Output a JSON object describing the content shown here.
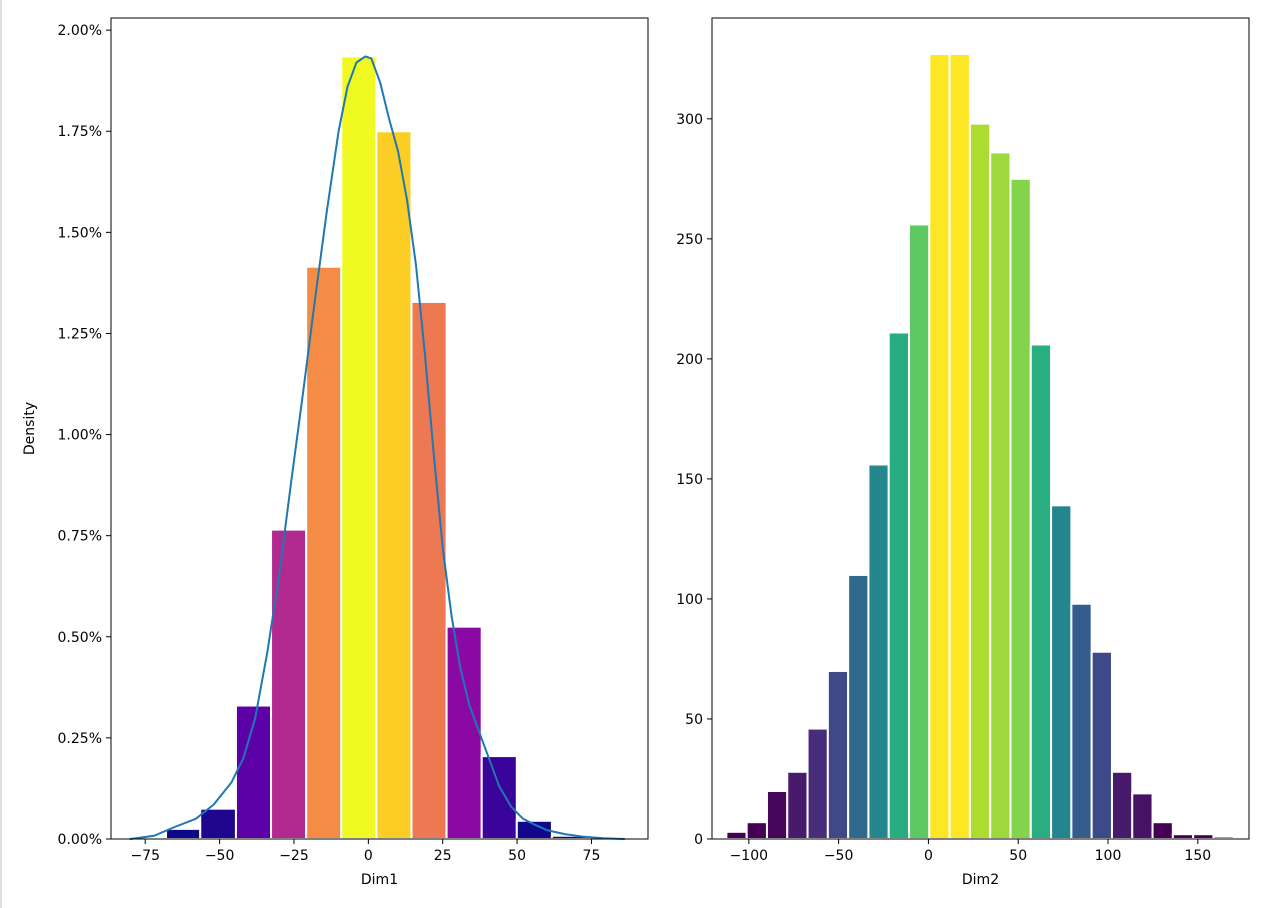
{
  "chart_data": [
    {
      "type": "bar",
      "subtype": "histogram-with-kde",
      "xlabel": "Dim1",
      "ylabel": "Density",
      "xlim": [
        -86.5,
        94
      ],
      "ylim": [
        0,
        0.0203
      ],
      "xticks": [
        -75,
        -50,
        -25,
        0,
        25,
        50,
        75
      ],
      "xtick_labels": [
        "−75",
        "−50",
        "−25",
        "0",
        "25",
        "50",
        "75"
      ],
      "yticks": [
        0,
        0.0025,
        0.005,
        0.0075,
        0.01,
        0.0125,
        0.015,
        0.0175,
        0.02
      ],
      "ytick_labels": [
        "0.00%",
        "0.25%",
        "0.50%",
        "0.75%",
        "1.00%",
        "1.25%",
        "1.50%",
        "1.75%",
        "2.00%"
      ],
      "colormap": "plasma",
      "bins": [
        {
          "x0": -68,
          "x1": -56.5,
          "value": 0.00025,
          "color": "#0d0887"
        },
        {
          "x0": -56.5,
          "x1": -44.5,
          "value": 0.00075,
          "color": "#1f068d"
        },
        {
          "x0": -44.5,
          "x1": -32.7,
          "value": 0.0033,
          "color": "#5c01a6"
        },
        {
          "x0": -32.7,
          "x1": -20.9,
          "value": 0.00765,
          "color": "#b12a90"
        },
        {
          "x0": -20.9,
          "x1": -9.1,
          "value": 0.01415,
          "color": "#f58c46"
        },
        {
          "x0": -9.1,
          "x1": 2.7,
          "value": 0.01935,
          "color": "#f0f921"
        },
        {
          "x0": 2.7,
          "x1": 14.5,
          "value": 0.0175,
          "color": "#fcce25"
        },
        {
          "x0": 14.5,
          "x1": 26.3,
          "value": 0.01328,
          "color": "#ed7953"
        },
        {
          "x0": 26.3,
          "x1": 38.1,
          "value": 0.00525,
          "color": "#8a09a5"
        },
        {
          "x0": 38.1,
          "x1": 49.9,
          "value": 0.00205,
          "color": "#3a049a"
        },
        {
          "x0": 49.9,
          "x1": 61.7,
          "value": 0.00045,
          "color": "#10078a"
        },
        {
          "x0": 61.7,
          "x1": 73.5,
          "value": 8e-05,
          "color": "#0d0887"
        }
      ],
      "kde": {
        "color": "#1f77b4",
        "x": [
          -80,
          -72,
          -65,
          -58,
          -52,
          -46,
          -42,
          -38,
          -34,
          -30,
          -26,
          -22,
          -18,
          -14,
          -10,
          -7,
          -4,
          -1,
          1,
          4,
          7,
          10,
          13,
          16,
          19,
          22,
          25,
          28,
          31,
          34,
          37,
          40,
          44,
          48,
          52,
          56,
          60,
          66,
          72,
          79,
          86
        ],
        "y": [
          0.0,
          8e-05,
          0.0003,
          0.0005,
          0.00085,
          0.0014,
          0.002,
          0.003,
          0.0046,
          0.0065,
          0.0088,
          0.011,
          0.0133,
          0.0155,
          0.0175,
          0.0186,
          0.0192,
          0.01935,
          0.0193,
          0.0187,
          0.0178,
          0.017,
          0.0158,
          0.0142,
          0.012,
          0.0095,
          0.0072,
          0.0055,
          0.0042,
          0.0033,
          0.0027,
          0.0021,
          0.0013,
          0.0008,
          0.0005,
          0.00035,
          0.00022,
          0.00012,
          6e-05,
          2e-05,
          0.0
        ]
      }
    },
    {
      "type": "bar",
      "subtype": "histogram",
      "xlabel": "Dim2",
      "ylabel": "",
      "xlim": [
        -120.5,
        178.5
      ],
      "ylim": [
        0,
        342
      ],
      "xticks": [
        -100,
        -50,
        0,
        50,
        100,
        150
      ],
      "xtick_labels": [
        "−100",
        "−50",
        "0",
        "50",
        "100",
        "150"
      ],
      "yticks": [
        0,
        50,
        100,
        150,
        200,
        250,
        300
      ],
      "ytick_labels": [
        "0",
        "50",
        "100",
        "150",
        "200",
        "250",
        "300"
      ],
      "colormap": "viridis",
      "bins": [
        {
          "x0": -112.5,
          "x1": -101.2,
          "value": 3,
          "color": "#440154"
        },
        {
          "x0": -101.2,
          "x1": -89.9,
          "value": 7,
          "color": "#440154"
        },
        {
          "x0": -89.9,
          "x1": -78.6,
          "value": 20,
          "color": "#46075a"
        },
        {
          "x0": -78.6,
          "x1": -67.3,
          "value": 28,
          "color": "#481a6c"
        },
        {
          "x0": -67.3,
          "x1": -56.0,
          "value": 46,
          "color": "#472e7c"
        },
        {
          "x0": -56.0,
          "x1": -44.7,
          "value": 70,
          "color": "#3f4889"
        },
        {
          "x0": -44.7,
          "x1": -33.4,
          "value": 110,
          "color": "#31688e"
        },
        {
          "x0": -33.4,
          "x1": -22.1,
          "value": 156,
          "color": "#24878e"
        },
        {
          "x0": -22.1,
          "x1": -10.8,
          "value": 211,
          "color": "#27ad81"
        },
        {
          "x0": -10.8,
          "x1": 0.5,
          "value": 256,
          "color": "#5ec962"
        },
        {
          "x0": 0.5,
          "x1": 11.8,
          "value": 327,
          "color": "#fde725"
        },
        {
          "x0": 11.8,
          "x1": 23.1,
          "value": 327,
          "color": "#fde725"
        },
        {
          "x0": 23.1,
          "x1": 34.4,
          "value": 298,
          "color": "#addc30"
        },
        {
          "x0": 34.4,
          "x1": 45.7,
          "value": 286,
          "color": "#9bd93c"
        },
        {
          "x0": 45.7,
          "x1": 57.0,
          "value": 275,
          "color": "#84d44b"
        },
        {
          "x0": 57.0,
          "x1": 68.3,
          "value": 206,
          "color": "#28ae80"
        },
        {
          "x0": 68.3,
          "x1": 79.6,
          "value": 139,
          "color": "#25858e"
        },
        {
          "x0": 79.6,
          "x1": 90.9,
          "value": 98,
          "color": "#365c8d"
        },
        {
          "x0": 90.9,
          "x1": 102.2,
          "value": 78,
          "color": "#3e4989"
        },
        {
          "x0": 102.2,
          "x1": 113.5,
          "value": 28,
          "color": "#481a6c"
        },
        {
          "x0": 113.5,
          "x1": 124.8,
          "value": 19,
          "color": "#471164"
        },
        {
          "x0": 124.8,
          "x1": 136.1,
          "value": 7,
          "color": "#440154"
        },
        {
          "x0": 136.1,
          "x1": 147.4,
          "value": 2,
          "color": "#440154"
        },
        {
          "x0": 147.4,
          "x1": 158.7,
          "value": 2,
          "color": "#440154"
        },
        {
          "x0": 158.7,
          "x1": 170.0,
          "value": 1,
          "color": "#440154"
        }
      ]
    }
  ]
}
